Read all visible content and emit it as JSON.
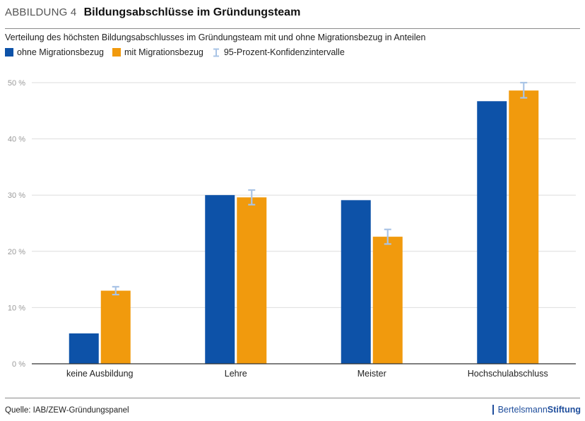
{
  "header": {
    "label": "ABBILDUNG 4",
    "title": "Bildungsabschlüsse im Gründungsteam"
  },
  "subtitle": "Verteilung des höchsten Bildungsabschlusses im Gründungsteam mit und ohne Migrationsbezug  in Anteilen",
  "legend": {
    "series_a": "ohne Migrationsbezug",
    "series_b": "mit Migrationsbezug",
    "ci": "95-Prozent-Konfidenzintervalle"
  },
  "colors": {
    "series_a": "#0d52a8",
    "series_b": "#f19a0d",
    "ci": "#a9c4e6",
    "grid": "#dedede",
    "axis": "#333333",
    "tick_text": "#9a9a9a"
  },
  "chart_data": {
    "type": "bar",
    "categories": [
      "keine Ausbildung",
      "Lehre",
      "Meister",
      "Hochschulabschluss"
    ],
    "series": [
      {
        "name": "ohne Migrationsbezug",
        "values": [
          5.4,
          30.0,
          29.1,
          46.7
        ]
      },
      {
        "name": "mit Migrationsbezug",
        "values": [
          13.0,
          29.6,
          22.6,
          48.6
        ],
        "ci": [
          [
            12.3,
            13.7
          ],
          [
            28.3,
            30.9
          ],
          [
            21.3,
            23.9
          ],
          [
            47.3,
            50.0
          ]
        ]
      }
    ],
    "ylim": [
      0,
      50
    ],
    "yticks": [
      0,
      10,
      20,
      30,
      40,
      50
    ],
    "ytick_labels": [
      "0 %",
      "10 %",
      "20 %",
      "30 %",
      "40 %",
      "50 %"
    ],
    "grid": true,
    "legend_position": "top-left"
  },
  "footer": {
    "source": "Quelle: IAB/ZEW-Gründungspanel",
    "logo_regular": "Bertelsmann",
    "logo_bold": "Stiftung"
  }
}
